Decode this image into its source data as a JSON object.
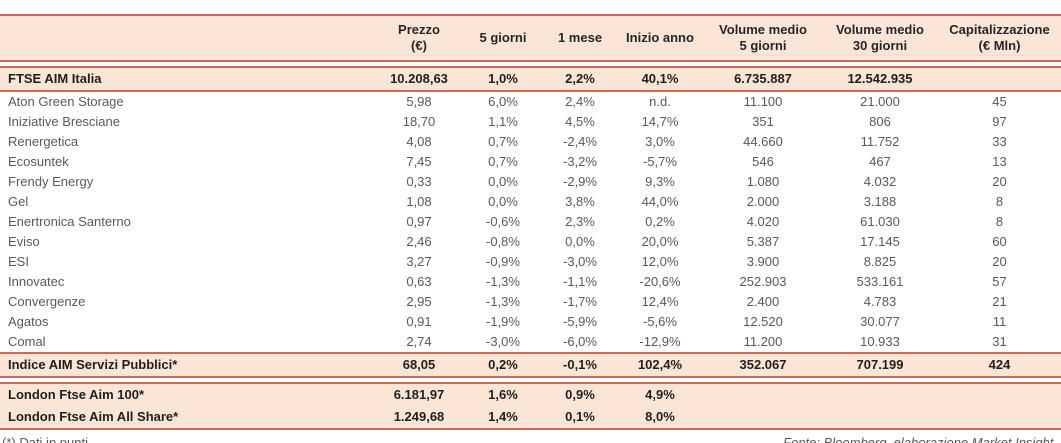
{
  "colors": {
    "accent_border": "#c96a58",
    "row_fill": "#fbe5d6",
    "text_dark": "#1f1f1f",
    "text_gray": "#595959"
  },
  "table": {
    "columns": [
      {
        "key": "name",
        "label": ""
      },
      {
        "key": "prezzo",
        "label": "Prezzo\n(€)"
      },
      {
        "key": "5-giorni",
        "label": "5 giorni"
      },
      {
        "key": "1-mese",
        "label": "1 mese"
      },
      {
        "key": "inizio-anno",
        "label": "Inizio anno"
      },
      {
        "key": "volume-medio-5-giorni",
        "label": "Volume medio\n5 giorni"
      },
      {
        "key": "volume-medio-30-giorni",
        "label": "Volume medio\n30 giorni"
      },
      {
        "key": "capitalizzazione",
        "label": "Capitalizzazione\n(€ Mln)"
      }
    ],
    "ftse_row": {
      "name": "FTSE AIM Italia",
      "values": [
        "10.208,63",
        "1,0%",
        "2,2%",
        "40,1%",
        "6.735.887",
        "12.542.935",
        ""
      ]
    },
    "company_rows": [
      {
        "name": "Aton Green Storage",
        "values": [
          "5,98",
          "6,0%",
          "2,4%",
          "n.d.",
          "11.100",
          "21.000",
          "45"
        ]
      },
      {
        "name": "Iniziative Bresciane",
        "values": [
          "18,70",
          "1,1%",
          "4,5%",
          "14,7%",
          "351",
          "806",
          "97"
        ]
      },
      {
        "name": "Renergetica",
        "values": [
          "4,08",
          "0,7%",
          "-2,4%",
          "3,0%",
          "44.660",
          "11.752",
          "33"
        ]
      },
      {
        "name": "Ecosuntek",
        "values": [
          "7,45",
          "0,7%",
          "-3,2%",
          "-5,7%",
          "546",
          "467",
          "13"
        ]
      },
      {
        "name": "Frendy Energy",
        "values": [
          "0,33",
          "0,0%",
          "-2,9%",
          "9,3%",
          "1.080",
          "4.032",
          "20"
        ]
      },
      {
        "name": "Gel",
        "values": [
          "1,08",
          "0,0%",
          "3,8%",
          "44,0%",
          "2.000",
          "3.188",
          "8"
        ]
      },
      {
        "name": "Enertronica Santerno",
        "values": [
          "0,97",
          "-0,6%",
          "2,3%",
          "0,2%",
          "4.020",
          "61.030",
          "8"
        ]
      },
      {
        "name": "Eviso",
        "values": [
          "2,46",
          "-0,8%",
          "0,0%",
          "20,0%",
          "5.387",
          "17.145",
          "60"
        ]
      },
      {
        "name": "ESI",
        "values": [
          "3,27",
          "-0,9%",
          "-3,0%",
          "12,0%",
          "3.900",
          "8.825",
          "20"
        ]
      },
      {
        "name": "Innovatec",
        "values": [
          "0,63",
          "-1,3%",
          "-1,1%",
          "-20,6%",
          "252.903",
          "533.161",
          "57"
        ]
      },
      {
        "name": "Convergenze",
        "values": [
          "2,95",
          "-1,3%",
          "-1,7%",
          "12,4%",
          "2.400",
          "4.783",
          "21"
        ]
      },
      {
        "name": "Agatos",
        "values": [
          "0,91",
          "-1,9%",
          "-5,9%",
          "-5,6%",
          "12.520",
          "30.077",
          "11"
        ]
      },
      {
        "name": "Comal",
        "values": [
          "2,74",
          "-3,0%",
          "-6,0%",
          "-12,9%",
          "11.200",
          "10.933",
          "31"
        ]
      }
    ],
    "servizi_row": {
      "name": "Indice AIM Servizi Pubblici*",
      "values": [
        "68,05",
        "0,2%",
        "-0,1%",
        "102,4%",
        "352.067",
        "707.199",
        "424"
      ]
    },
    "london_rows": [
      {
        "name": "London Ftse Aim 100*",
        "values": [
          "6.181,97",
          "1,6%",
          "0,9%",
          "4,9%",
          "",
          "",
          ""
        ]
      },
      {
        "name": "London Ftse Aim All Share*",
        "values": [
          "1.249,68",
          "1,4%",
          "0,1%",
          "8,0%",
          "",
          "",
          ""
        ]
      }
    ]
  },
  "footer": {
    "note": "(*) Dati in punti",
    "source": "Fonte: Bloomberg, elaborazione Market Insight."
  }
}
